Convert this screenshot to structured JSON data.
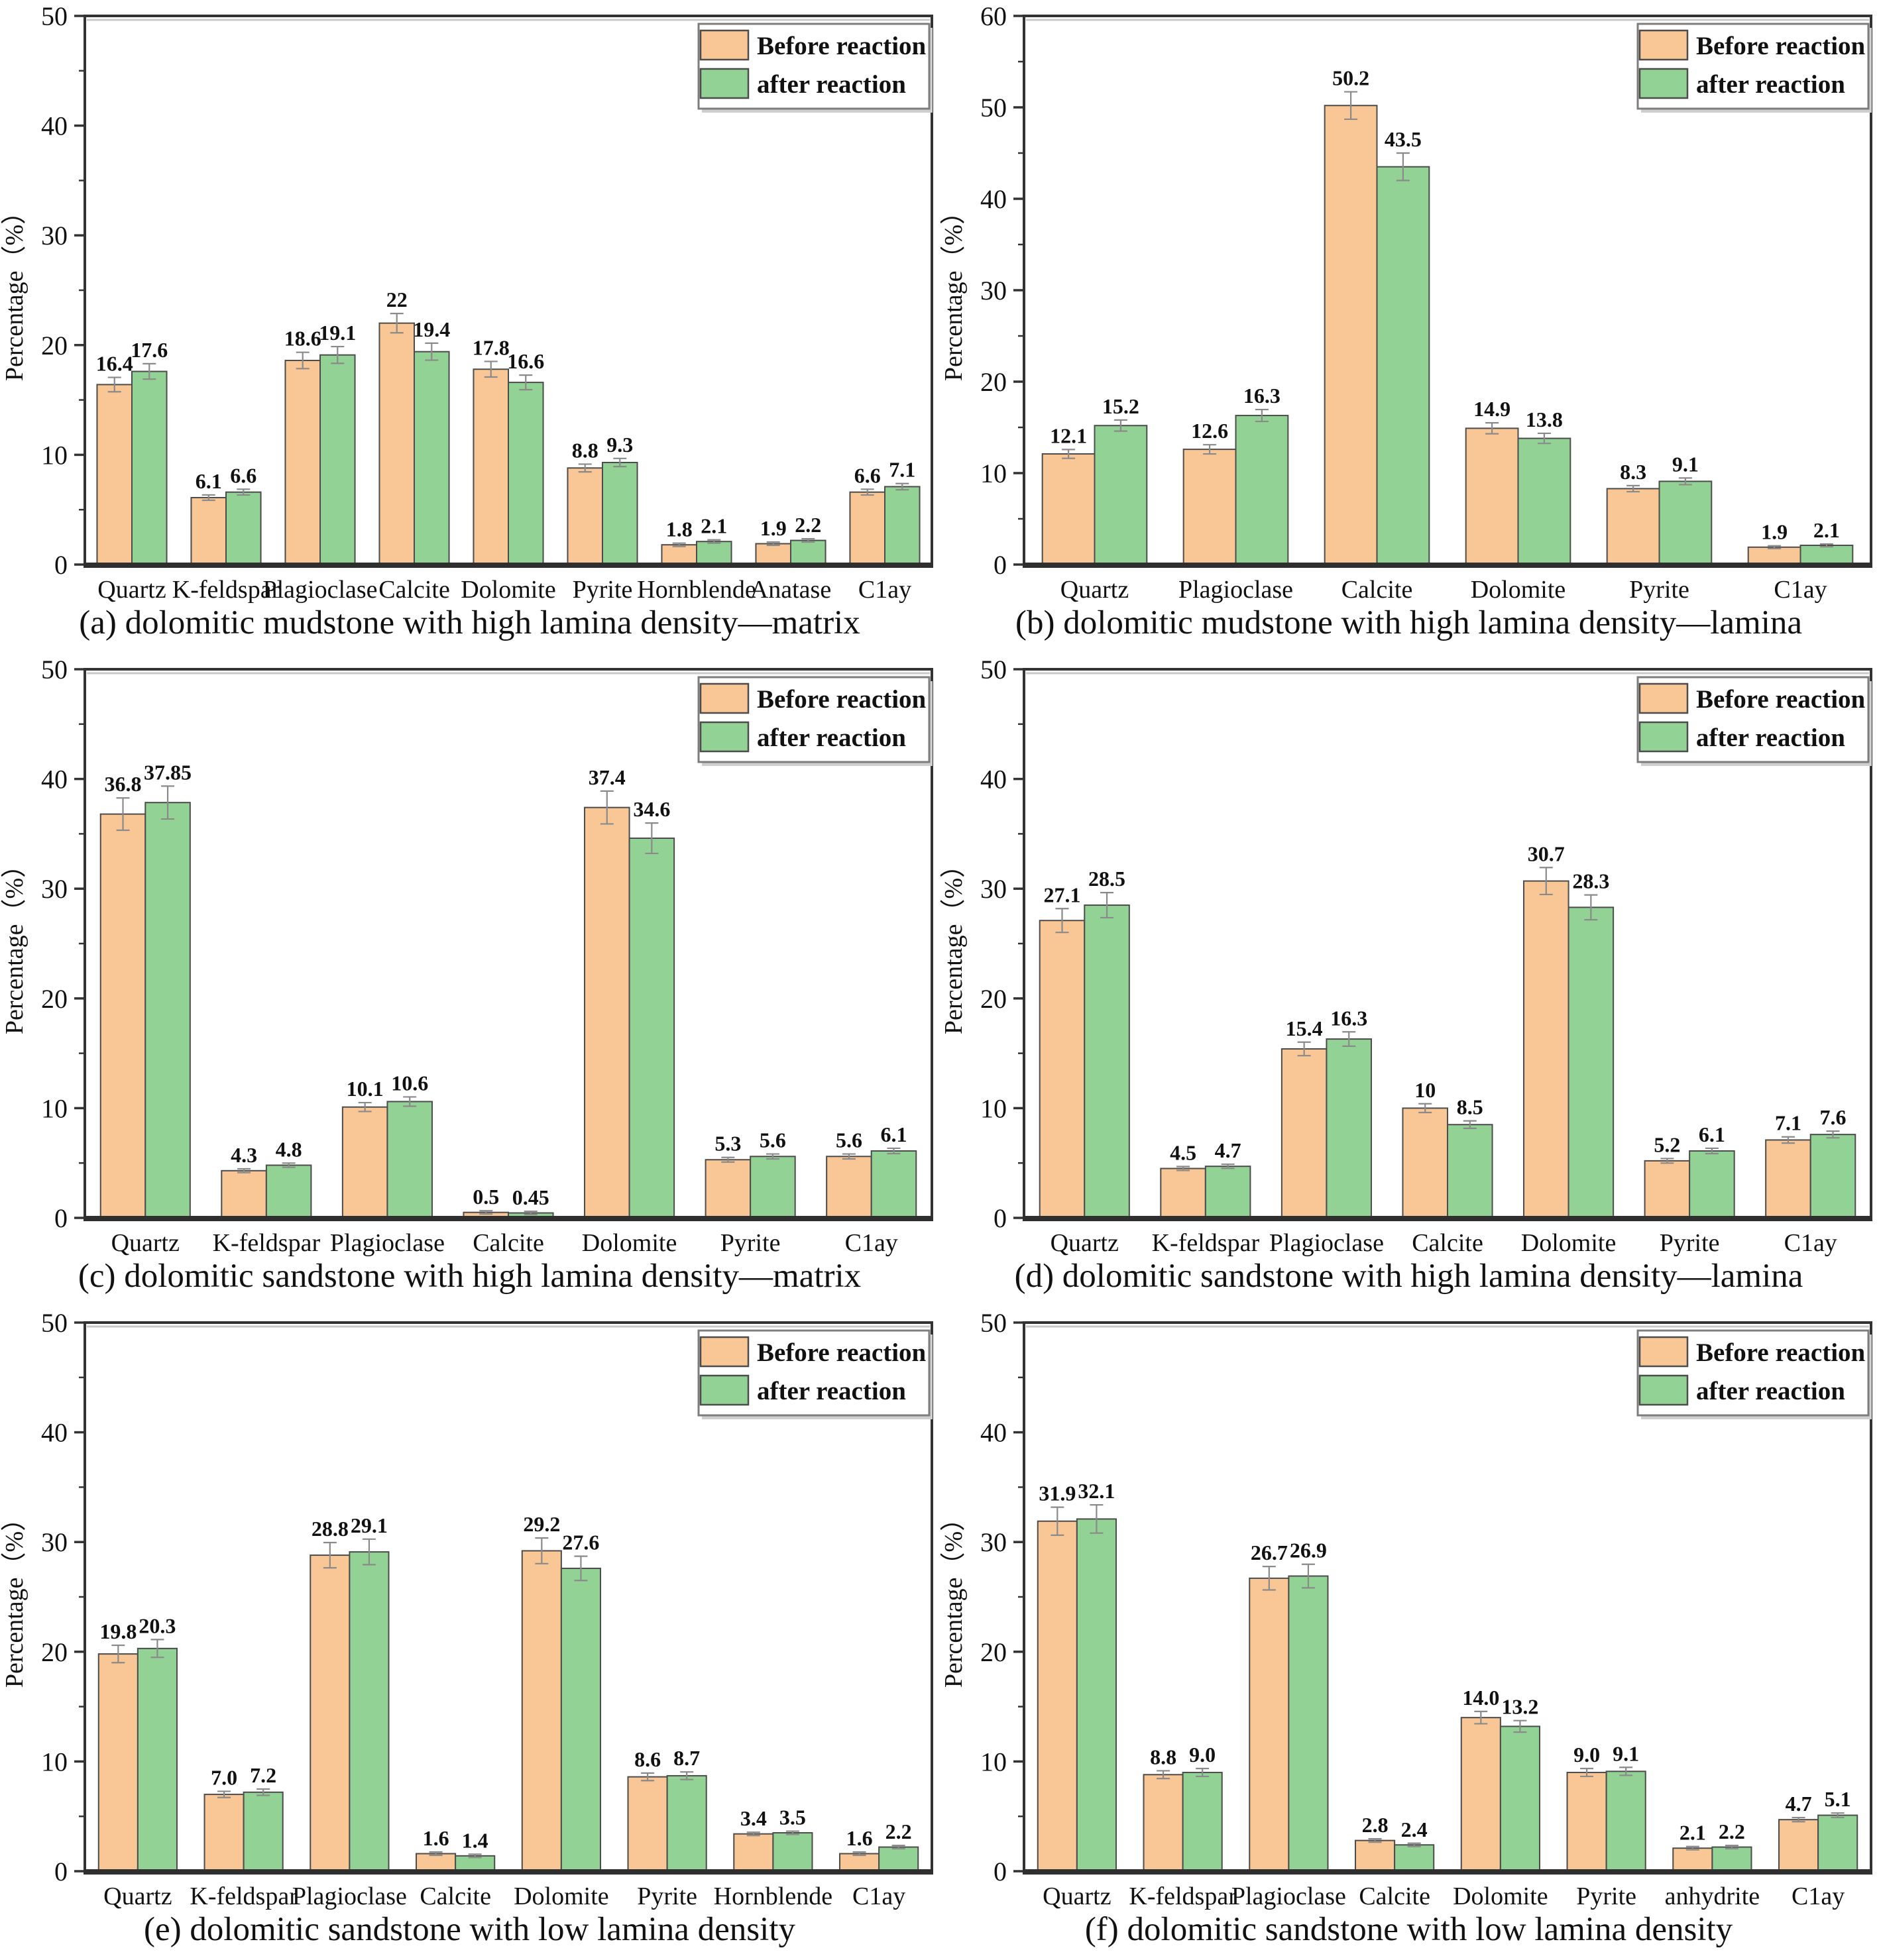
{
  "figure": {
    "ylabel": "Percentage（%）",
    "legend": {
      "before_label": "Before reaction",
      "after_label": "after reaction"
    },
    "colors": {
      "before_fill": "#F8C795",
      "after_fill": "#93D295",
      "bar_border": "#4c4c4c",
      "axis": "#333333",
      "axis_shadow": "#c8c8c8",
      "error_bar": "#8a8a8a",
      "text": "#111111",
      "legend_border": "#7d7d7d",
      "legend_shadow": "#cfcfcf",
      "background": "#ffffff"
    },
    "chart_data": [
      {
        "type": "bar",
        "id": "a",
        "caption": "(a) dolomitic mudstone with high lamina density—matrix",
        "ylabel": "Percentage（%）",
        "ylim": [
          0,
          50
        ],
        "ytick_major": 10,
        "ytick_minor": 5,
        "grid": "off",
        "legend_position": "top-right",
        "categories": [
          "Quartz",
          "K-feldspar",
          "Plagioclase",
          "Calcite",
          "Dolomite",
          "Pyrite",
          "Hornblende",
          "Anatase",
          "C1ay"
        ],
        "series": [
          {
            "name": "Before reaction",
            "values": [
              "16.4",
              "6.1",
              "18.6",
              "22",
              "17.8",
              "8.8",
              "1.8",
              "1.9",
              "6.6"
            ]
          },
          {
            "name": "after reaction",
            "values": [
              "17.6",
              "6.6",
              "19.1",
              "19.4",
              "16.6",
              "9.3",
              "2.1",
              "2.2",
              "7.1"
            ]
          }
        ]
      },
      {
        "type": "bar",
        "id": "b",
        "caption": "(b) dolomitic mudstone with high lamina density—lamina",
        "ylabel": "Percentage（%）",
        "ylim": [
          0,
          60
        ],
        "ytick_major": 10,
        "ytick_minor": 5,
        "grid": "off",
        "legend_position": "top-right",
        "categories": [
          "Quartz",
          "Plagioclase",
          "Calcite",
          "Dolomite",
          "Pyrite",
          "C1ay"
        ],
        "series": [
          {
            "name": "Before reaction",
            "values": [
              "12.1",
              "12.6",
              "50.2",
              "14.9",
              "8.3",
              "1.9"
            ]
          },
          {
            "name": "after reaction",
            "values": [
              "15.2",
              "16.3",
              "43.5",
              "13.8",
              "9.1",
              "2.1"
            ]
          }
        ]
      },
      {
        "type": "bar",
        "id": "c",
        "caption": "(c) dolomitic sandstone with high lamina density—matrix",
        "ylabel": "Percentage（%）",
        "ylim": [
          0,
          50
        ],
        "ytick_major": 10,
        "ytick_minor": 5,
        "grid": "off",
        "legend_position": "top-right",
        "categories": [
          "Quartz",
          "K-feldspar",
          "Plagioclase",
          "Calcite",
          "Dolomite",
          "Pyrite",
          "C1ay"
        ],
        "series": [
          {
            "name": "Before reaction",
            "values": [
              "36.8",
              "4.3",
              "10.1",
              "0.5",
              "37.4",
              "5.3",
              "5.6"
            ]
          },
          {
            "name": "after reaction",
            "values": [
              "37.85",
              "4.8",
              "10.6",
              "0.45",
              "34.6",
              "5.6",
              "6.1"
            ]
          }
        ]
      },
      {
        "type": "bar",
        "id": "d",
        "caption": "(d) dolomitic sandstone with high lamina density—lamina",
        "ylabel": "Percentage（%）",
        "ylim": [
          0,
          50
        ],
        "ytick_major": 10,
        "ytick_minor": 5,
        "grid": "off",
        "legend_position": "top-right",
        "categories": [
          "Quartz",
          "K-feldspar",
          "Plagioclase",
          "Calcite",
          "Dolomite",
          "Pyrite",
          "C1ay"
        ],
        "series": [
          {
            "name": "Before reaction",
            "values": [
              "27.1",
              "4.5",
              "15.4",
              "10",
              "30.7",
              "5.2",
              "7.1"
            ]
          },
          {
            "name": "after reaction",
            "values": [
              "28.5",
              "4.7",
              "16.3",
              "8.5",
              "28.3",
              "6.1",
              "7.6"
            ]
          }
        ]
      },
      {
        "type": "bar",
        "id": "e",
        "caption": "(e) dolomitic sandstone with low lamina density",
        "ylabel": "Percentage（%）",
        "ylim": [
          0,
          50
        ],
        "ytick_major": 10,
        "ytick_minor": 5,
        "grid": "off",
        "legend_position": "top-right",
        "categories": [
          "Quartz",
          "K-feldspar",
          "Plagioclase",
          "Calcite",
          "Dolomite",
          "Pyrite",
          "Hornblende",
          "C1ay"
        ],
        "series": [
          {
            "name": "Before reaction",
            "values": [
              "19.8",
              "7.0",
              "28.8",
              "1.6",
              "29.2",
              "8.6",
              "3.4",
              "1.6"
            ]
          },
          {
            "name": "after reaction",
            "values": [
              "20.3",
              "7.2",
              "29.1",
              "1.4",
              "27.6",
              "8.7",
              "3.5",
              "2.2"
            ]
          }
        ]
      },
      {
        "type": "bar",
        "id": "f",
        "caption": "(f) dolomitic sandstone with low lamina density",
        "ylabel": "Percentage（%）",
        "ylim": [
          0,
          50
        ],
        "ytick_major": 10,
        "ytick_minor": 5,
        "grid": "off",
        "legend_position": "top-right",
        "categories": [
          "Quartz",
          "K-feldspar",
          "Plagioclase",
          "Calcite",
          "Dolomite",
          "Pyrite",
          "anhydrite",
          "C1ay"
        ],
        "series": [
          {
            "name": "Before reaction",
            "values": [
              "31.9",
              "8.8",
              "26.7",
              "2.8",
              "14.0",
              "9.0",
              "2.1",
              "4.7"
            ]
          },
          {
            "name": "after reaction",
            "values": [
              "32.1",
              "9.0",
              "26.9",
              "2.4",
              "13.2",
              "9.1",
              "2.2",
              "5.1"
            ]
          }
        ]
      }
    ]
  }
}
